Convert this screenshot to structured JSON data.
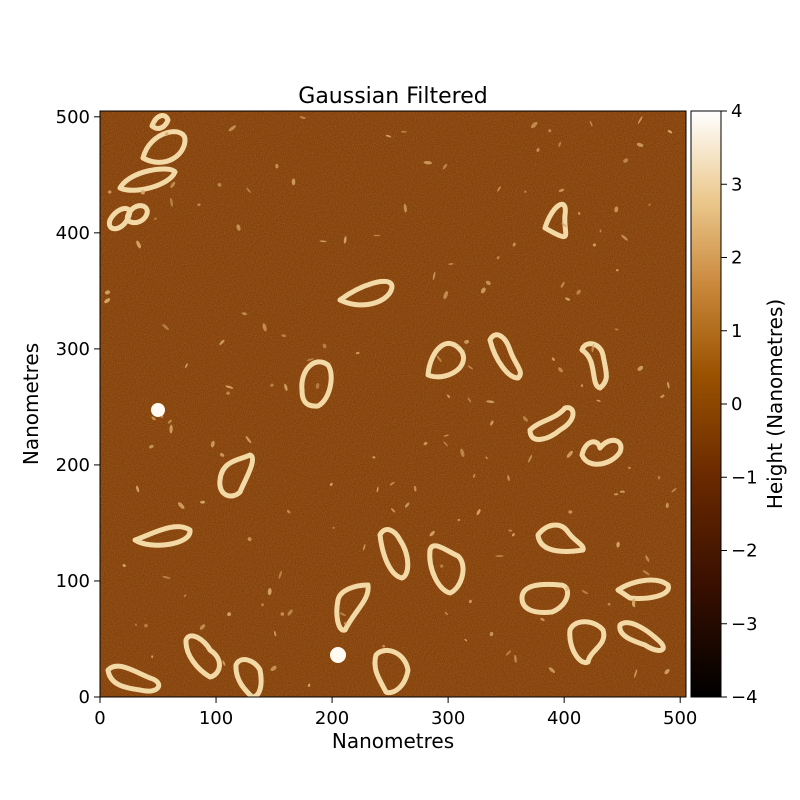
{
  "title": "Gaussian Filtered",
  "xlabel": "Nanometres",
  "ylabel": "Nanometres",
  "x_ticks": [
    "0",
    "100",
    "200",
    "300",
    "400",
    "500"
  ],
  "y_ticks": [
    "0",
    "100",
    "200",
    "300",
    "400",
    "500"
  ],
  "colorbar": {
    "label": "Height (Nanometres)",
    "ticks": [
      "−4",
      "−3",
      "−2",
      "−1",
      "0",
      "1",
      "2",
      "3",
      "4"
    ],
    "range": [
      -4,
      4
    ],
    "colors": [
      "#000000",
      "#3b1000",
      "#6b2a00",
      "#9a5200",
      "#c9873a",
      "#ecc98e",
      "#ffffff"
    ]
  },
  "image": {
    "extent_nm": [
      0,
      505
    ],
    "background_color": "#7a3608",
    "strand_color": "#f2d9a6",
    "description_type": "AFM height map of DNA minicircles"
  }
}
